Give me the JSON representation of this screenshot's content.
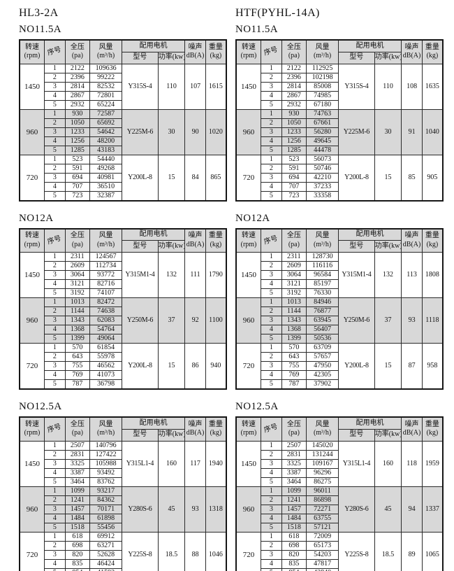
{
  "page": {
    "background": "#ffffff"
  },
  "colors": {
    "header_bg": "#d8d8d8",
    "shaded_band_bg": "#d8d8d8",
    "border": "#2a2a2a",
    "text": "#111111"
  },
  "table_header": {
    "speed_label": "转速",
    "speed_unit": "(rpm)",
    "index_label": "序号",
    "pressure_label": "全压",
    "pressure_unit": "(pa)",
    "airflow_label": "风量",
    "airflow_unit": "(m³/h)",
    "motor_label": "配用电机",
    "model_label": "型号",
    "power_label": "功率(kw)",
    "noise_label": "噪声",
    "noise_unit": "dB(A)",
    "weight_label": "重量",
    "weight_unit": "(kg)"
  },
  "columns": [
    {
      "model_title": "HL3-2A",
      "tables": [
        {
          "size_title": "NO11.5A",
          "groups": [
            {
              "rpm": "1450",
              "shaded": false,
              "motor_model": "Y315S-4",
              "power_kw": "110",
              "noise_db": "107",
              "weight_kg": "1615",
              "rows": [
                [
                  "1",
                  "2122",
                  "109636"
                ],
                [
                  "2",
                  "2396",
                  "99222"
                ],
                [
                  "3",
                  "2814",
                  "82532"
                ],
                [
                  "4",
                  "2867",
                  "72801"
                ],
                [
                  "5",
                  "2932",
                  "65224"
                ]
              ]
            },
            {
              "rpm": "960",
              "shaded": true,
              "motor_model": "Y225M-6",
              "power_kw": "30",
              "noise_db": "90",
              "weight_kg": "1020",
              "rows": [
                [
                  "1",
                  "930",
                  "72587"
                ],
                [
                  "2",
                  "1050",
                  "65692"
                ],
                [
                  "3",
                  "1233",
                  "54642"
                ],
                [
                  "4",
                  "1256",
                  "48200"
                ],
                [
                  "5",
                  "1285",
                  "43183"
                ]
              ]
            },
            {
              "rpm": "720",
              "shaded": false,
              "motor_model": "Y200L-8",
              "power_kw": "15",
              "noise_db": "84",
              "weight_kg": "865",
              "rows": [
                [
                  "1",
                  "523",
                  "54440"
                ],
                [
                  "2",
                  "591",
                  "49268"
                ],
                [
                  "3",
                  "694",
                  "40981"
                ],
                [
                  "4",
                  "707",
                  "36510"
                ],
                [
                  "5",
                  "723",
                  "32387"
                ]
              ]
            }
          ]
        },
        {
          "size_title": "NO12A",
          "groups": [
            {
              "rpm": "1450",
              "shaded": false,
              "motor_model": "Y315M1-4",
              "power_kw": "132",
              "noise_db": "111",
              "weight_kg": "1790",
              "rows": [
                [
                  "1",
                  "2311",
                  "124567"
                ],
                [
                  "2",
                  "2609",
                  "112734"
                ],
                [
                  "3",
                  "3064",
                  "93772"
                ],
                [
                  "4",
                  "3121",
                  "82716"
                ],
                [
                  "5",
                  "3192",
                  "74107"
                ]
              ]
            },
            {
              "rpm": "960",
              "shaded": true,
              "motor_model": "Y250M-6",
              "power_kw": "37",
              "noise_db": "92",
              "weight_kg": "1100",
              "rows": [
                [
                  "1",
                  "1013",
                  "82472"
                ],
                [
                  "2",
                  "1144",
                  "74638"
                ],
                [
                  "3",
                  "1343",
                  "62083"
                ],
                [
                  "4",
                  "1368",
                  "54764"
                ],
                [
                  "5",
                  "1399",
                  "49064"
                ]
              ]
            },
            {
              "rpm": "720",
              "shaded": false,
              "motor_model": "Y200L-8",
              "power_kw": "15",
              "noise_db": "86",
              "weight_kg": "940",
              "rows": [
                [
                  "1",
                  "570",
                  "61854"
                ],
                [
                  "2",
                  "643",
                  "55978"
                ],
                [
                  "3",
                  "755",
                  "46562"
                ],
                [
                  "4",
                  "769",
                  "41073"
                ],
                [
                  "5",
                  "787",
                  "36798"
                ]
              ]
            }
          ]
        },
        {
          "size_title": "NO12.5A",
          "groups": [
            {
              "rpm": "1450",
              "shaded": false,
              "motor_model": "Y315L1-4",
              "power_kw": "160",
              "noise_db": "117",
              "weight_kg": "1940",
              "rows": [
                [
                  "1",
                  "2507",
                  "140796"
                ],
                [
                  "2",
                  "2831",
                  "127422"
                ],
                [
                  "3",
                  "3325",
                  "105988"
                ],
                [
                  "4",
                  "3387",
                  "93492"
                ],
                [
                  "5",
                  "3464",
                  "83762"
                ]
              ]
            },
            {
              "rpm": "960",
              "shaded": true,
              "motor_model": "Y280S-6",
              "power_kw": "45",
              "noise_db": "93",
              "weight_kg": "1318",
              "rows": [
                [
                  "1",
                  "1099",
                  "93217"
                ],
                [
                  "2",
                  "1241",
                  "84362"
                ],
                [
                  "3",
                  "1457",
                  "70171"
                ],
                [
                  "4",
                  "1484",
                  "61898"
                ],
                [
                  "5",
                  "1518",
                  "55456"
                ]
              ]
            },
            {
              "rpm": "720",
              "shaded": false,
              "motor_model": "Y225S-8",
              "power_kw": "18.5",
              "noise_db": "88",
              "weight_kg": "1046",
              "rows": [
                [
                  "1",
                  "618",
                  "69912"
                ],
                [
                  "2",
                  "698",
                  "63271"
                ],
                [
                  "3",
                  "820",
                  "52628"
                ],
                [
                  "4",
                  "835",
                  "46424"
                ],
                [
                  "5",
                  "854",
                  "41592"
                ]
              ]
            }
          ]
        }
      ]
    },
    {
      "model_title": "HTF(PYHL-14A)",
      "tables": [
        {
          "size_title": "NO11.5A",
          "groups": [
            {
              "rpm": "1450",
              "shaded": false,
              "motor_model": "Y315S-4",
              "power_kw": "110",
              "noise_db": "108",
              "weight_kg": "1635",
              "rows": [
                [
                  "1",
                  "2122",
                  "112925"
                ],
                [
                  "2",
                  "2396",
                  "102198"
                ],
                [
                  "3",
                  "2814",
                  "85008"
                ],
                [
                  "4",
                  "2867",
                  "74985"
                ],
                [
                  "5",
                  "2932",
                  "67180"
                ]
              ]
            },
            {
              "rpm": "960",
              "shaded": true,
              "motor_model": "Y225M-6",
              "power_kw": "30",
              "noise_db": "91",
              "weight_kg": "1040",
              "rows": [
                [
                  "1",
                  "930",
                  "74763"
                ],
                [
                  "2",
                  "1050",
                  "67661"
                ],
                [
                  "3",
                  "1233",
                  "56280"
                ],
                [
                  "4",
                  "1256",
                  "49645"
                ],
                [
                  "5",
                  "1285",
                  "44478"
                ]
              ]
            },
            {
              "rpm": "720",
              "shaded": false,
              "motor_model": "Y200L-8",
              "power_kw": "15",
              "noise_db": "85",
              "weight_kg": "905",
              "rows": [
                [
                  "1",
                  "523",
                  "56073"
                ],
                [
                  "2",
                  "591",
                  "50746"
                ],
                [
                  "3",
                  "694",
                  "42210"
                ],
                [
                  "4",
                  "707",
                  "37233"
                ],
                [
                  "5",
                  "723",
                  "33358"
                ]
              ]
            }
          ]
        },
        {
          "size_title": "NO12A",
          "groups": [
            {
              "rpm": "1450",
              "shaded": false,
              "motor_model": "Y315M1-4",
              "power_kw": "132",
              "noise_db": "113",
              "weight_kg": "1808",
              "rows": [
                [
                  "1",
                  "2311",
                  "128730"
                ],
                [
                  "2",
                  "2609",
                  "116116"
                ],
                [
                  "3",
                  "3064",
                  "96584"
                ],
                [
                  "4",
                  "3121",
                  "85197"
                ],
                [
                  "5",
                  "3192",
                  "76330"
                ]
              ]
            },
            {
              "rpm": "960",
              "shaded": true,
              "motor_model": "Y250M-6",
              "power_kw": "37",
              "noise_db": "93",
              "weight_kg": "1118",
              "rows": [
                [
                  "1",
                  "1013",
                  "84946"
                ],
                [
                  "2",
                  "1144",
                  "76877"
                ],
                [
                  "3",
                  "1343",
                  "63945"
                ],
                [
                  "4",
                  "1368",
                  "56407"
                ],
                [
                  "5",
                  "1399",
                  "50536"
                ]
              ]
            },
            {
              "rpm": "720",
              "shaded": false,
              "motor_model": "Y200L-8",
              "power_kw": "15",
              "noise_db": "87",
              "weight_kg": "958",
              "rows": [
                [
                  "1",
                  "570",
                  "63709"
                ],
                [
                  "2",
                  "643",
                  "57657"
                ],
                [
                  "3",
                  "755",
                  "47950"
                ],
                [
                  "4",
                  "769",
                  "42305"
                ],
                [
                  "5",
                  "787",
                  "37902"
                ]
              ]
            }
          ]
        },
        {
          "size_title": "NO12.5A",
          "groups": [
            {
              "rpm": "1450",
              "shaded": false,
              "motor_model": "Y315L1-4",
              "power_kw": "160",
              "noise_db": "118",
              "weight_kg": "1959",
              "rows": [
                [
                  "1",
                  "2507",
                  "145020"
                ],
                [
                  "2",
                  "2831",
                  "131244"
                ],
                [
                  "3",
                  "3325",
                  "109167"
                ],
                [
                  "4",
                  "3387",
                  "96296"
                ],
                [
                  "5",
                  "3464",
                  "86275"
                ]
              ]
            },
            {
              "rpm": "960",
              "shaded": true,
              "motor_model": "Y280S-6",
              "power_kw": "45",
              "noise_db": "94",
              "weight_kg": "1337",
              "rows": [
                [
                  "1",
                  "1099",
                  "96011"
                ],
                [
                  "2",
                  "1241",
                  "86898"
                ],
                [
                  "3",
                  "1457",
                  "72271"
                ],
                [
                  "4",
                  "1484",
                  "63755"
                ],
                [
                  "5",
                  "1518",
                  "57121"
                ]
              ]
            },
            {
              "rpm": "720",
              "shaded": false,
              "motor_model": "Y225S-8",
              "power_kw": "18.5",
              "noise_db": "89",
              "weight_kg": "1065",
              "rows": [
                [
                  "1",
                  "618",
                  "72009"
                ],
                [
                  "2",
                  "698",
                  "65173"
                ],
                [
                  "3",
                  "820",
                  "54203"
                ],
                [
                  "4",
                  "835",
                  "47817"
                ],
                [
                  "5",
                  "854",
                  "42840"
                ]
              ]
            }
          ]
        }
      ]
    }
  ]
}
